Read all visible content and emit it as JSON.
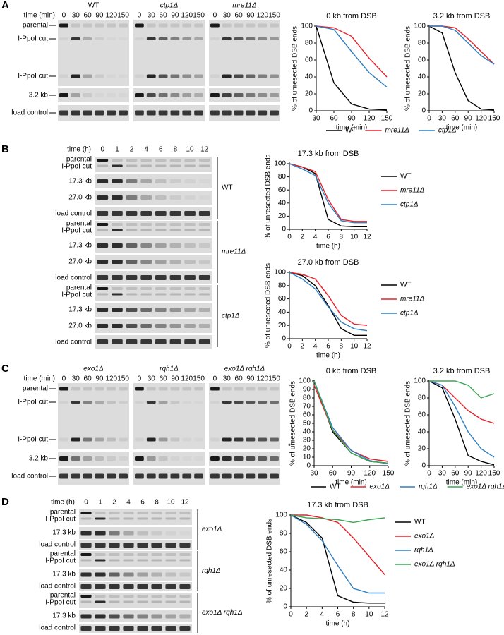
{
  "gels": [
    {
      "letter": "A",
      "time_label": "time (min)",
      "lanes": [
        "0",
        "30",
        "60",
        "90",
        "120",
        "150"
      ],
      "strains": [
        "WT",
        "ctp1Δ",
        "mre11Δ"
      ],
      "rows": [
        "parental",
        "I-PpoI cut",
        "I-PpoI cut",
        "3.2 kb",
        "load control"
      ]
    },
    {
      "letter": "B",
      "time_label": "time (h)",
      "lanes": [
        "0",
        "1",
        "2",
        "4",
        "6",
        "8",
        "10",
        "12"
      ],
      "groups": [
        {
          "strain": "WT",
          "rows": [
            "parental",
            "I-PpoI cut",
            "17.3 kb",
            "27.0 kb",
            "load control"
          ]
        },
        {
          "strain": "mre11Δ",
          "rows": [
            "parental",
            "I-PpoI cut",
            "17.3 kb",
            "27.0 kb",
            "load control"
          ]
        },
        {
          "strain": "ctp1Δ",
          "rows": [
            "parental",
            "I-PpoI cut",
            "17.3 kb",
            "27.0 kb",
            "load control"
          ]
        }
      ]
    },
    {
      "letter": "C",
      "time_label": "time (min)",
      "lanes": [
        "0",
        "30",
        "60",
        "90",
        "120",
        "150"
      ],
      "strains": [
        "exo1Δ",
        "rqh1Δ",
        "exo1Δ rqh1Δ"
      ],
      "rows": [
        "parental",
        "I-PpoI cut",
        "I-PpoI cut",
        "3.2 kb",
        "load control"
      ],
      "note": "*"
    },
    {
      "letter": "D",
      "time_label": "time (h)",
      "lanes": [
        "0",
        "1",
        "2",
        "4",
        "6",
        "8",
        "10",
        "12"
      ],
      "groups": [
        {
          "strain": "exo1Δ",
          "rows": [
            "parental",
            "I-PpoI cut",
            "17.3 kb",
            "load control"
          ]
        },
        {
          "strain": "rqh1Δ",
          "rows": [
            "parental",
            "I-PpoI cut",
            "17.3 kb",
            "load control"
          ]
        },
        {
          "strain": "exo1Δ rqh1Δ",
          "rows": [
            "parental",
            "I-PpoI cut",
            "17.3 kb",
            "load control"
          ]
        }
      ]
    }
  ],
  "chart_data": [
    {
      "type": "line",
      "title": "0 kb from DSB",
      "xlabel": "time (min)",
      "ylabel": "% of unresected DSB ends",
      "x": [
        30,
        60,
        90,
        120,
        150
      ],
      "xlim": [
        30,
        150
      ],
      "xticks": [
        30,
        60,
        90,
        120,
        150
      ],
      "ylim": [
        0,
        100
      ],
      "yticks": [
        0,
        20,
        40,
        60,
        80,
        100
      ],
      "series": [
        {
          "name": "WT",
          "color": "#000000",
          "values": [
            100,
            33,
            8,
            2,
            1
          ]
        },
        {
          "name": "mre11Δ",
          "color": "#e8202a",
          "values": [
            100,
            98,
            88,
            62,
            40
          ]
        },
        {
          "name": "ctp1Δ",
          "color": "#2f7fc1",
          "values": [
            100,
            96,
            70,
            45,
            28
          ]
        }
      ]
    },
    {
      "type": "line",
      "title": "3.2 kb from DSB",
      "xlabel": "time (min)",
      "ylabel": "% of unresected DSB ends",
      "x": [
        0,
        30,
        60,
        90,
        120,
        150
      ],
      "xlim": [
        0,
        150
      ],
      "xticks": [
        0,
        30,
        60,
        90,
        120,
        150
      ],
      "ylim": [
        0,
        100
      ],
      "yticks": [
        0,
        20,
        40,
        60,
        80,
        100
      ],
      "legend": "below",
      "series": [
        {
          "name": "WT",
          "color": "#000000",
          "values": [
            100,
            92,
            45,
            12,
            2,
            1
          ]
        },
        {
          "name": "mre11Δ",
          "color": "#e8202a",
          "values": [
            100,
            100,
            98,
            85,
            70,
            55
          ]
        },
        {
          "name": "ctp1Δ",
          "color": "#2f7fc1",
          "values": [
            100,
            100,
            95,
            80,
            65,
            55
          ]
        }
      ]
    },
    {
      "type": "line",
      "title": "17.3 kb from DSB",
      "xlabel": "time (h)",
      "ylabel": "% of unresected DSB ends",
      "x": [
        0,
        2,
        4,
        6,
        8,
        10,
        12
      ],
      "xlim": [
        0,
        12
      ],
      "xticks": [
        0,
        2,
        4,
        6,
        8,
        10,
        12
      ],
      "ylim": [
        0,
        100
      ],
      "yticks": [
        0,
        20,
        40,
        60,
        80,
        100
      ],
      "legend": "right",
      "series": [
        {
          "name": "WT",
          "color": "#000000",
          "values": [
            100,
            95,
            85,
            15,
            5,
            4,
            4
          ]
        },
        {
          "name": "mre11Δ",
          "color": "#e8202a",
          "values": [
            100,
            95,
            88,
            45,
            15,
            12,
            12
          ]
        },
        {
          "name": "ctp1Δ",
          "color": "#2f7fc1",
          "values": [
            100,
            92,
            82,
            40,
            13,
            10,
            10
          ]
        }
      ]
    },
    {
      "type": "line",
      "title": "27.0 kb from DSB",
      "xlabel": "time (h)",
      "ylabel": "% of unresected DSB ends",
      "x": [
        0,
        2,
        4,
        6,
        8,
        10,
        12
      ],
      "xlim": [
        0,
        12
      ],
      "xticks": [
        0,
        2,
        4,
        6,
        8,
        10,
        12
      ],
      "ylim": [
        0,
        100
      ],
      "yticks": [
        0,
        20,
        40,
        60,
        80,
        100
      ],
      "legend": "right",
      "series": [
        {
          "name": "WT",
          "color": "#000000",
          "values": [
            100,
            95,
            80,
            50,
            15,
            5,
            5
          ]
        },
        {
          "name": "mre11Δ",
          "color": "#e8202a",
          "values": [
            100,
            97,
            90,
            65,
            35,
            22,
            20
          ]
        },
        {
          "name": "ctp1Δ",
          "color": "#2f7fc1",
          "values": [
            100,
            90,
            75,
            48,
            25,
            15,
            12
          ]
        }
      ]
    },
    {
      "type": "line",
      "title": "0 kb from DSB",
      "xlabel": "time (min)",
      "ylabel": "% of unresected DSB ends",
      "x": [
        30,
        60,
        90,
        120,
        150
      ],
      "xlim": [
        30,
        150
      ],
      "xticks": [
        30,
        60,
        90,
        120,
        150
      ],
      "ylim": [
        0,
        100
      ],
      "yticks": [
        0,
        10,
        20,
        30,
        40,
        50,
        60,
        70,
        80,
        90,
        100
      ],
      "series": [
        {
          "name": "WT",
          "color": "#000000",
          "values": [
            100,
            40,
            15,
            5,
            3
          ]
        },
        {
          "name": "exo1Δ",
          "color": "#e8202a",
          "values": [
            95,
            42,
            18,
            8,
            5
          ]
        },
        {
          "name": "rqh1Δ",
          "color": "#2f7fc1",
          "values": [
            100,
            45,
            18,
            6,
            2
          ]
        },
        {
          "name": "exo1Δ rqh1Δ",
          "color": "#3aa655",
          "values": [
            100,
            42,
            15,
            5,
            3
          ]
        }
      ]
    },
    {
      "type": "line",
      "title": "3.2 kb from DSB",
      "xlabel": "time (min)",
      "ylabel": "% of unresected DSB ends",
      "x": [
        0,
        30,
        60,
        90,
        120,
        150
      ],
      "xlim": [
        0,
        150
      ],
      "xticks": [
        0,
        30,
        60,
        90,
        120,
        150
      ],
      "ylim": [
        0,
        100
      ],
      "yticks": [
        0,
        20,
        40,
        60,
        80,
        100
      ],
      "legend": "below",
      "series": [
        {
          "name": "WT",
          "color": "#000000",
          "values": [
            100,
            92,
            55,
            12,
            5,
            1
          ]
        },
        {
          "name": "exo1Δ",
          "color": "#e8202a",
          "values": [
            100,
            95,
            80,
            65,
            55,
            50
          ]
        },
        {
          "name": "rqh1Δ",
          "color": "#2f7fc1",
          "values": [
            100,
            95,
            70,
            40,
            20,
            10
          ]
        },
        {
          "name": "exo1Δ rqh1Δ",
          "color": "#3aa655",
          "values": [
            100,
            100,
            100,
            95,
            80,
            85
          ]
        }
      ]
    },
    {
      "type": "line",
      "title": "17.3 kb from DSB",
      "xlabel": "time (h)",
      "ylabel": "% of unresected DSB ends",
      "x": [
        0,
        2,
        4,
        6,
        8,
        10,
        12
      ],
      "xlim": [
        0,
        12
      ],
      "xticks": [
        0,
        2,
        4,
        6,
        8,
        10,
        12
      ],
      "ylim": [
        0,
        100
      ],
      "yticks": [
        0,
        20,
        40,
        60,
        80,
        100
      ],
      "legend": "right",
      "series": [
        {
          "name": "WT",
          "color": "#000000",
          "values": [
            100,
            92,
            75,
            12,
            5,
            4,
            4
          ]
        },
        {
          "name": "exo1Δ",
          "color": "#e8202a",
          "values": [
            100,
            100,
            97,
            92,
            75,
            55,
            35
          ]
        },
        {
          "name": "rqh1Δ",
          "color": "#2f7fc1",
          "values": [
            100,
            90,
            72,
            45,
            20,
            15,
            15
          ]
        },
        {
          "name": "exo1Δ rqh1Δ",
          "color": "#3aa655",
          "values": [
            100,
            97,
            96,
            95,
            92,
            95,
            97
          ]
        }
      ]
    }
  ]
}
